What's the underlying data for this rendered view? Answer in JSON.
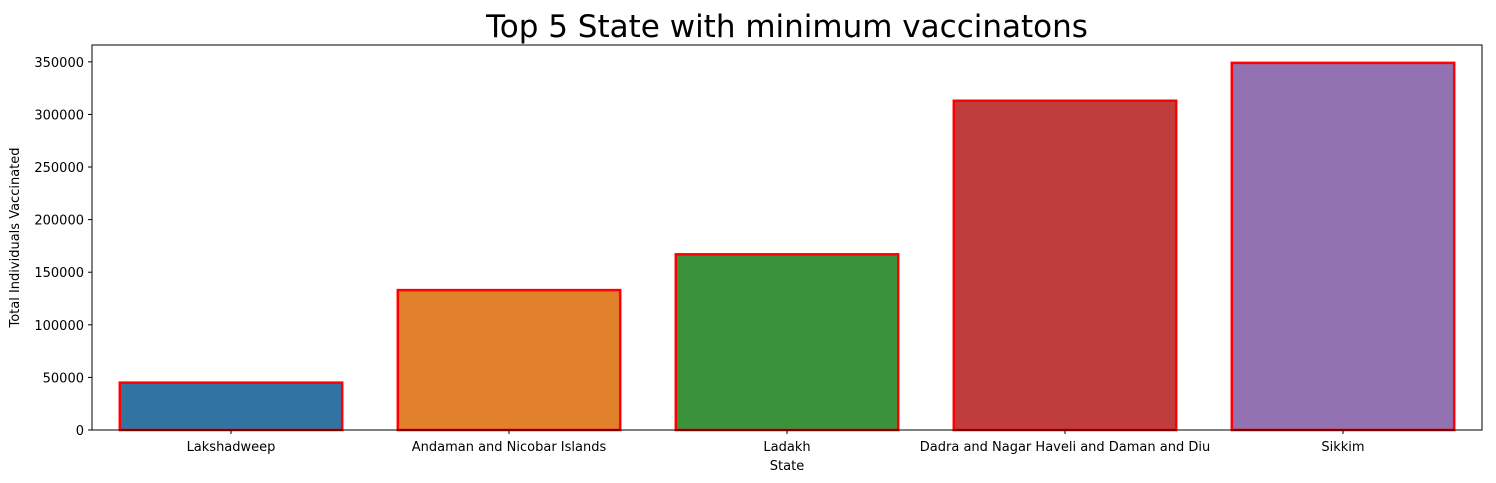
{
  "chart_data": {
    "type": "bar",
    "title": "Top 5 State with minimum vaccinatons",
    "xlabel": "State",
    "ylabel": "Total Individuals Vaccinated",
    "categories": [
      "Lakshadweep",
      "Andaman and Nicobar Islands",
      "Ladakh",
      "Dadra and Nagar Haveli and Daman and Diu",
      "Sikkim"
    ],
    "values": [
      45000,
      133000,
      167000,
      313000,
      349000
    ],
    "colors": [
      "#3274a1",
      "#e1812c",
      "#3a923a",
      "#c03d3e",
      "#9372b2"
    ],
    "edge_color": "#ff0000",
    "ylim": [
      0,
      366000
    ],
    "yticks": [
      0,
      50000,
      100000,
      150000,
      200000,
      250000,
      300000,
      350000
    ],
    "grid": false
  }
}
